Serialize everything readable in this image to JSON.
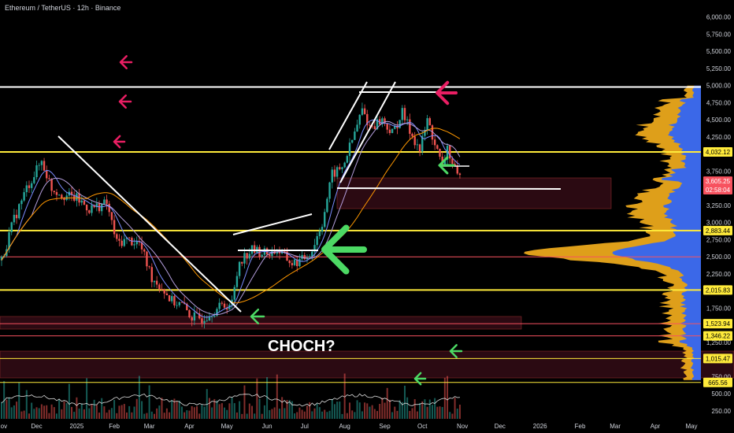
{
  "header": {
    "title": "Ethereum / TetherUS · 12h · Binance"
  },
  "colors": {
    "background": "#000000",
    "yellow": "#ffeb3b",
    "white": "#ffffff",
    "red": "#f7525f",
    "pink": "#e91e63",
    "green": "#4cd964",
    "profile_yellow": "#f6b01d",
    "profile_blue": "#2962ff",
    "candle_up": "#26a69a",
    "candle_down": "#ef5350"
  },
  "chart_data": {
    "type": "candlestick",
    "title": "Ethereum / TetherUS · 12h · Binance",
    "price_axis": {
      "min": 100,
      "max": 6250,
      "ticks": [
        "6,000.00",
        "5,750.00",
        "5,500.00",
        "5,250.00",
        "5,000.00",
        "4,750.00",
        "4,500.00",
        "4,250.00",
        "3,750.00",
        "3,250.00",
        "3,000.00",
        "2,750.00",
        "2,500.00",
        "2,250.00",
        "1,750.00",
        "1,250.00",
        "750.00",
        "500.00",
        "250.00"
      ]
    },
    "time_axis": {
      "labels": [
        "Nov",
        "Dec",
        "2025",
        "Feb",
        "Mar",
        "Apr",
        "May",
        "Jun",
        "Jul",
        "Aug",
        "Sep",
        "Oct",
        "Nov",
        "Dec",
        "2026",
        "Feb",
        "Mar",
        "Apr",
        "May"
      ],
      "label_index": [
        0,
        14,
        30,
        45,
        59,
        75,
        90,
        106,
        121,
        137,
        153,
        168,
        184,
        199,
        215,
        231,
        245,
        261,
        276
      ]
    },
    "price_series": [
      {
        "i": 0,
        "p": 2450
      },
      {
        "i": 5,
        "p": 3050
      },
      {
        "i": 10,
        "p": 3500
      },
      {
        "i": 16,
        "p": 3900
      },
      {
        "i": 20,
        "p": 3500
      },
      {
        "i": 25,
        "p": 3400
      },
      {
        "i": 30,
        "p": 3350
      },
      {
        "i": 35,
        "p": 3200
      },
      {
        "i": 42,
        "p": 3280
      },
      {
        "i": 46,
        "p": 2700
      },
      {
        "i": 50,
        "p": 2750
      },
      {
        "i": 55,
        "p": 2700
      },
      {
        "i": 60,
        "p": 2200
      },
      {
        "i": 64,
        "p": 2050
      },
      {
        "i": 68,
        "p": 1850
      },
      {
        "i": 72,
        "p": 1800
      },
      {
        "i": 76,
        "p": 1620
      },
      {
        "i": 80,
        "p": 1600
      },
      {
        "i": 84,
        "p": 1700
      },
      {
        "i": 88,
        "p": 1780
      },
      {
        "i": 92,
        "p": 1820
      },
      {
        "i": 95,
        "p": 2450
      },
      {
        "i": 100,
        "p": 2600
      },
      {
        "i": 106,
        "p": 2550
      },
      {
        "i": 110,
        "p": 2600
      },
      {
        "i": 116,
        "p": 2400
      },
      {
        "i": 120,
        "p": 2450
      },
      {
        "i": 124,
        "p": 2600
      },
      {
        "i": 128,
        "p": 3000
      },
      {
        "i": 132,
        "p": 3700
      },
      {
        "i": 136,
        "p": 3800
      },
      {
        "i": 140,
        "p": 4200
      },
      {
        "i": 144,
        "p": 4650
      },
      {
        "i": 147,
        "p": 4400
      },
      {
        "i": 152,
        "p": 4500
      },
      {
        "i": 156,
        "p": 4300
      },
      {
        "i": 160,
        "p": 4600
      },
      {
        "i": 163,
        "p": 4350
      },
      {
        "i": 167,
        "p": 4050
      },
      {
        "i": 170,
        "p": 4500
      },
      {
        "i": 173,
        "p": 4150
      },
      {
        "i": 176,
        "p": 3800
      },
      {
        "i": 178,
        "p": 4100
      },
      {
        "i": 180,
        "p": 3850
      },
      {
        "i": 182,
        "p": 3650
      }
    ],
    "key_levels": [
      {
        "name": "upper",
        "price": 4980,
        "color": "#ffffff",
        "width": 2
      },
      {
        "name": "resistance",
        "price": 4032.12,
        "color": "#ffeb3b",
        "width": 2
      },
      {
        "name": "mid-yellow",
        "price": 2883.44,
        "color": "#ffeb3b",
        "width": 2
      },
      {
        "name": "poc-red",
        "price": 2500,
        "color": "#f7525f",
        "width": 1
      },
      {
        "name": "support",
        "price": 2015.83,
        "color": "#ffeb3b",
        "width": 2
      },
      {
        "name": "low-red-1",
        "price": 1523.94,
        "color": "#f7525f",
        "width": 1
      },
      {
        "name": "low-red-2",
        "price": 1346.22,
        "color": "#f7525f",
        "width": 1
      },
      {
        "name": "deep-yellow-1",
        "price": 1015.47,
        "color": "#ffeb3b",
        "width": 1
      },
      {
        "name": "deep-yellow-2",
        "price": 665.56,
        "color": "#ffeb3b",
        "width": 1
      }
    ],
    "price_tags": [
      {
        "label": "4,032.12",
        "price": 4032.12,
        "bg": "#ffeb3b",
        "fg": "#000000"
      },
      {
        "label": "3,605.25",
        "price": 3605.25,
        "bg": "#f7525f",
        "fg": "#ffffff"
      },
      {
        "label": "02:58:04",
        "price": 3480,
        "bg": "#f7525f",
        "fg": "#ffffff"
      },
      {
        "label": "2,883.44",
        "price": 2883.44,
        "bg": "#ffeb3b",
        "fg": "#000000"
      },
      {
        "label": "2,015.83",
        "price": 2015.83,
        "bg": "#ffeb3b",
        "fg": "#000000"
      },
      {
        "label": "1,523.94",
        "price": 1523.94,
        "bg": "#ffeb3b",
        "fg": "#000000"
      },
      {
        "label": "1,346.22",
        "price": 1346.22,
        "bg": "#ffeb3b",
        "fg": "#000000"
      },
      {
        "label": "1,015.47",
        "price": 1015.47,
        "bg": "#ffeb3b",
        "fg": "#000000"
      },
      {
        "label": "665.56",
        "price": 665.56,
        "bg": "#ffeb3b",
        "fg": "#000000"
      }
    ],
    "annotations": [
      {
        "text": "CHOCH?"
      }
    ]
  }
}
